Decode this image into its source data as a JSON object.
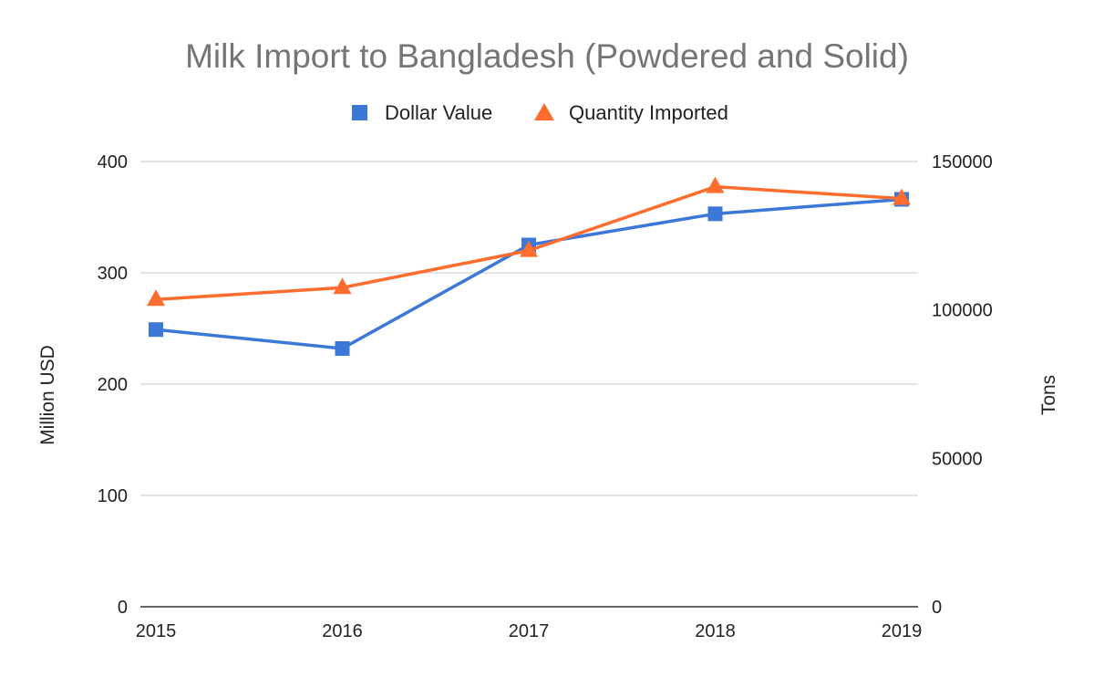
{
  "chart_data": {
    "type": "line",
    "title": "Milk Import to Bangladesh (Powdered and Solid)",
    "x": [
      "2015",
      "2016",
      "2017",
      "2018",
      "2019"
    ],
    "series": [
      {
        "name": "Dollar Value",
        "axis": "left",
        "marker": "square",
        "color": "#3c78d8",
        "values": [
          249,
          232,
          325,
          353,
          366
        ]
      },
      {
        "name": "Quantity Imported",
        "axis": "right",
        "marker": "triangle",
        "color": "#ff6d2e",
        "values": [
          103500,
          107500,
          120000,
          141500,
          137500
        ]
      }
    ],
    "y_left": {
      "label": "Million USD",
      "range": [
        0,
        400
      ],
      "ticks": [
        "0",
        "100",
        "200",
        "300",
        "400"
      ]
    },
    "y_right": {
      "label": "Tons",
      "range": [
        0,
        150000
      ],
      "ticks": [
        "0",
        "50000",
        "100000",
        "150000"
      ]
    },
    "grid": true,
    "legend_position": "top"
  }
}
